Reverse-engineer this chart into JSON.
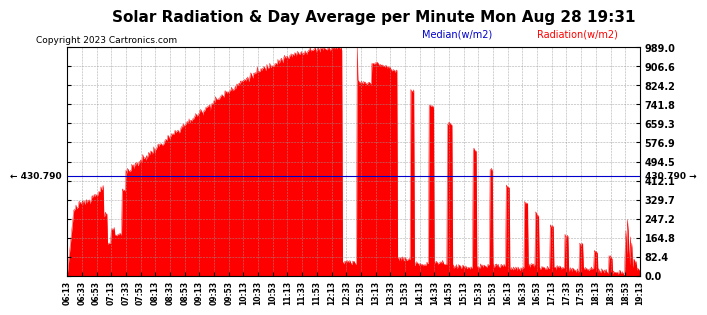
{
  "title": "Solar Radiation & Day Average per Minute Mon Aug 28 19:31",
  "copyright": "Copyright 2023 Cartronics.com",
  "legend_median": "Median(w/m2)",
  "legend_radiation": "Radiation(w/m2)",
  "median_value": 430.79,
  "y_ticks": [
    0.0,
    82.4,
    164.8,
    247.2,
    329.7,
    412.1,
    494.5,
    576.9,
    659.3,
    741.8,
    824.2,
    906.6,
    989.0
  ],
  "y_max": 989.0,
  "y_min": 0.0,
  "background_color": "#ffffff",
  "fill_color": "#ff0000",
  "median_color": "#0000cc",
  "title_fontsize": 11,
  "grid_color": "#aaaaaa",
  "left_label": "430.790"
}
